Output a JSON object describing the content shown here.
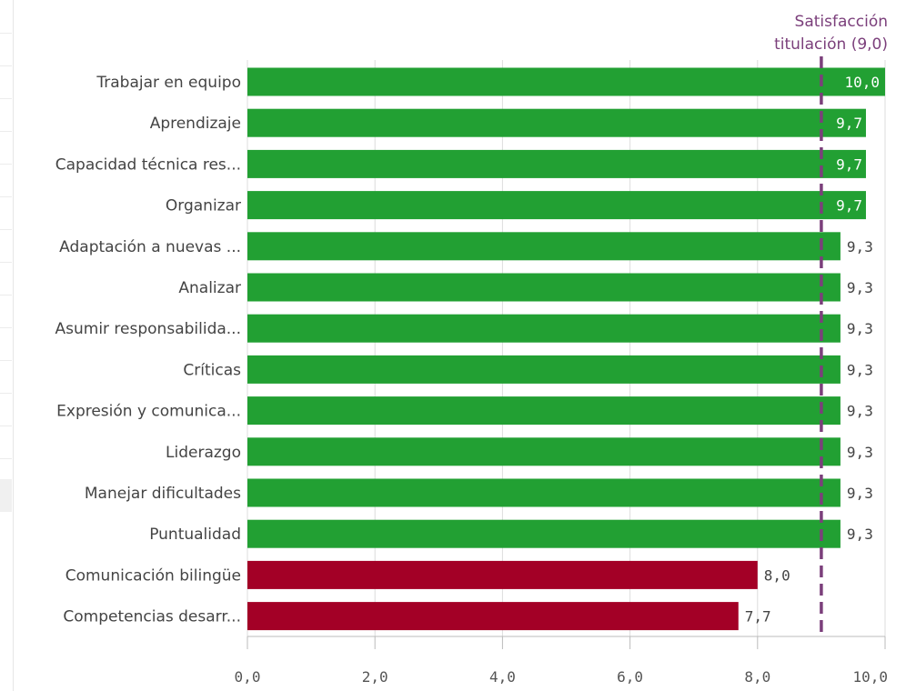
{
  "chart_data": {
    "type": "bar",
    "orientation": "horizontal",
    "categories": [
      "Trabajar en equipo",
      "Aprendizaje",
      "Capacidad técnica res...",
      "Organizar",
      "Adaptación a nuevas ...",
      "Analizar",
      "Asumir responsabilida...",
      "Críticas",
      "Expresión y comunica...",
      "Liderazgo",
      "Manejar dificultades",
      "Puntualidad",
      "Comunicación bilingüe",
      "Competencias desarr..."
    ],
    "values": [
      10.0,
      9.7,
      9.7,
      9.7,
      9.3,
      9.3,
      9.3,
      9.3,
      9.3,
      9.3,
      9.3,
      9.3,
      8.0,
      7.7
    ],
    "value_labels": [
      "10,0",
      "9,7",
      "9,7",
      "9,7",
      "9,3",
      "9,3",
      "9,3",
      "9,3",
      "9,3",
      "9,3",
      "9,3",
      "9,3",
      "8,0",
      "7,7"
    ],
    "xlim": [
      0,
      10
    ],
    "x_ticks": [
      0,
      2,
      4,
      6,
      8,
      10
    ],
    "x_tick_labels": [
      "0,0",
      "2,0",
      "4,0",
      "6,0",
      "8,0",
      "10,0"
    ],
    "grid": true,
    "reference_line": {
      "value": 9.0,
      "label_line1": "Satisfacción",
      "label_line2": "titulación (9,0)",
      "color": "#7b3f7b",
      "style": "dashed"
    },
    "colors": {
      "above": "#22a033",
      "below": "#a30026",
      "label_text": "#444444",
      "gridline": "#dcdcdc",
      "axis": "#bbbbbb"
    }
  }
}
